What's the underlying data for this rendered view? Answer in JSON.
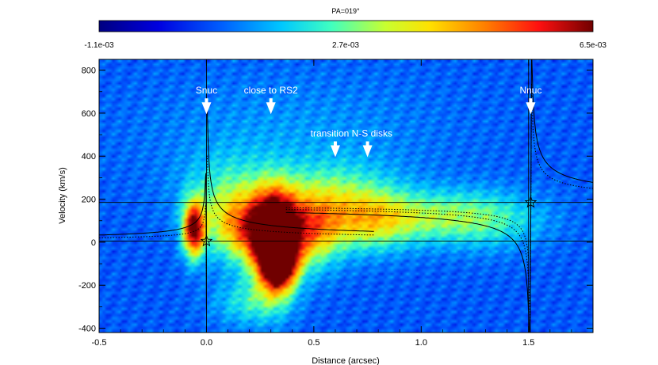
{
  "chart_data": {
    "type": "heatmap",
    "title": "PA=019°",
    "xlabel": "Distance (arcsec)",
    "ylabel": "Velocity (km/s)",
    "xlim": [
      -0.5,
      1.8
    ],
    "ylim": [
      -420,
      850
    ],
    "x_ticks": [
      "-0.5",
      "0.0",
      "0.5",
      "1.0",
      "1.5"
    ],
    "x_tick_values": [
      -0.5,
      0.0,
      0.5,
      1.0,
      1.5
    ],
    "y_ticks": [
      "800",
      "600",
      "400",
      "200",
      "0",
      "-200",
      "-400"
    ],
    "y_tick_values": [
      800,
      600,
      400,
      200,
      0,
      -200,
      -400
    ],
    "colorbar": {
      "min_label": "-1.1e-03",
      "mid_label": "2.7e-03",
      "max_label": "6.5e-03",
      "min": -0.0011,
      "mid": 0.0027,
      "max": 0.0065
    },
    "reference_lines": {
      "horizontal_velocities": [
        185,
        5
      ],
      "vertical_distances": [
        0.0,
        1.5
      ]
    },
    "nuclei": [
      {
        "name": "Snuc",
        "x": 0.0,
        "y": 5
      },
      {
        "name": "Nnuc",
        "x": 1.51,
        "y": 185
      }
    ],
    "annotations": [
      {
        "text": "Snuc",
        "x": 0.0,
        "arrow_y": 610
      },
      {
        "text": "close to RS2",
        "x": 0.3,
        "arrow_y": 610
      },
      {
        "text": "transition N-S disks",
        "x": 0.6,
        "arrow_y": 410
      },
      {
        "text": "",
        "x": 0.75,
        "arrow_y": 410
      },
      {
        "text": "Nnuc",
        "x": 1.51,
        "arrow_y": 610
      }
    ],
    "emission_blobs": [
      {
        "x": 0.32,
        "y": 0,
        "sx": 0.07,
        "sy": 150,
        "amp": 0.0075
      },
      {
        "x": 0.34,
        "y": -90,
        "sx": 0.05,
        "sy": 80,
        "amp": 0.0045
      },
      {
        "x": -0.06,
        "y": 60,
        "sx": 0.035,
        "sy": 90,
        "amp": 0.0055
      },
      {
        "x": 0.2,
        "y": 60,
        "sx": 0.12,
        "sy": 110,
        "amp": 0.0035
      },
      {
        "x": 0.48,
        "y": 50,
        "sx": 0.1,
        "sy": 120,
        "amp": 0.0032
      },
      {
        "x": 0.75,
        "y": 90,
        "sx": 0.15,
        "sy": 100,
        "amp": 0.0022
      },
      {
        "x": 1.05,
        "y": 120,
        "sx": 0.25,
        "sy": 80,
        "amp": 0.0016
      },
      {
        "x": 0.6,
        "y": 220,
        "sx": 0.2,
        "sy": 110,
        "amp": 0.0016
      },
      {
        "x": 0.1,
        "y": 200,
        "sx": 0.15,
        "sy": 140,
        "amp": 0.0016
      },
      {
        "x": 0.2,
        "y": -280,
        "sx": 0.12,
        "sy": 80,
        "amp": 0.0014
      },
      {
        "x": 1.3,
        "y": 100,
        "sx": 0.2,
        "sy": 100,
        "amp": 0.0012
      },
      {
        "x": 0.4,
        "y": 500,
        "sx": 0.5,
        "sy": 200,
        "amp": 0.0006
      }
    ],
    "model_curves": [
      {
        "name": "south-solid",
        "style": "solid",
        "x0": 0.0,
        "x": [
          -0.5,
          0.0
        ],
        "v_sys": 5,
        "k": 2.0,
        "side": -1
      },
      {
        "name": "south-dotted",
        "style": "dotted",
        "x0": 0.0,
        "x": [
          -0.5,
          0.0
        ],
        "v_sys": 5,
        "k": 1.1,
        "side": -1
      },
      {
        "name": "north-solid",
        "style": "solid",
        "x0": 1.51,
        "x": [
          0.37,
          1.8
        ],
        "v_sys": 185,
        "k": 5.0,
        "side": 1
      },
      {
        "name": "north-dotted-a",
        "style": "dotted",
        "x0": 1.51,
        "x": [
          0.37,
          1.8
        ],
        "v_sys": 185,
        "k": 3.5,
        "side": 1
      },
      {
        "name": "north-dotted-b",
        "style": "dotted",
        "x0": 1.51,
        "x": [
          0.37,
          1.5
        ],
        "v_sys": 185,
        "k": 2.6,
        "side": 1
      },
      {
        "name": "south-near-solid",
        "style": "solid",
        "x0": 0.0,
        "x": [
          0.0,
          0.78
        ],
        "v_sys": 5,
        "k": 4.0,
        "side": 1
      },
      {
        "name": "south-near-dotted",
        "style": "dotted",
        "x0": 0.0,
        "x": [
          0.0,
          0.78
        ],
        "v_sys": 5,
        "k": 2.5,
        "side": 1
      }
    ]
  }
}
